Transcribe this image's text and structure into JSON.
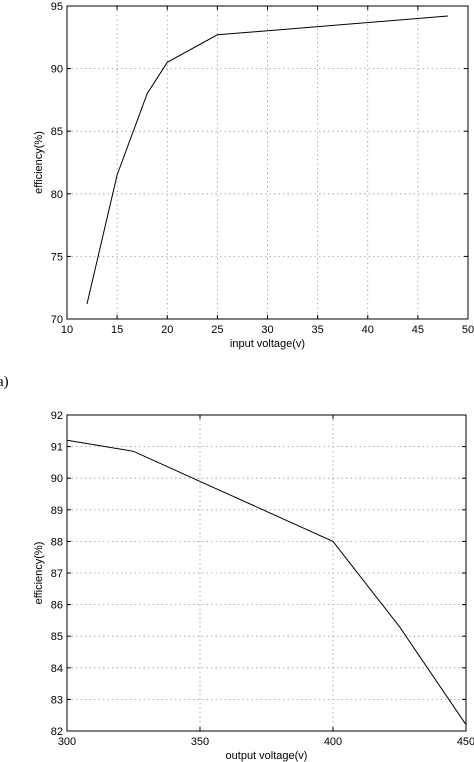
{
  "panel_labels": [
    "a)"
  ],
  "chart_data": [
    {
      "type": "line",
      "title": "",
      "xlabel": "input voltage(v)",
      "ylabel": "efficiency(%)",
      "xlim": [
        10,
        50
      ],
      "ylim": [
        70,
        95
      ],
      "xticks": [
        10,
        15,
        20,
        25,
        30,
        35,
        40,
        45,
        50
      ],
      "yticks": [
        70,
        75,
        80,
        85,
        90,
        95
      ],
      "xtick_labels": [
        "10",
        "15",
        "20",
        "25",
        "30",
        "35",
        "40",
        "45",
        "50"
      ],
      "ytick_labels": [
        "70",
        "75",
        "80",
        "85",
        "90",
        "95"
      ],
      "grid": true,
      "series": [
        {
          "x": [
            12,
            15,
            18,
            20,
            25,
            48
          ],
          "y": [
            71.2,
            81.5,
            88,
            90.5,
            92.7,
            94.2
          ]
        }
      ]
    },
    {
      "type": "line",
      "title": "",
      "xlabel": "output voltage(v)",
      "ylabel": "efficiency(%)",
      "xlim": [
        300,
        450
      ],
      "ylim": [
        82,
        92
      ],
      "xticks": [
        300,
        350,
        400,
        450
      ],
      "yticks": [
        82,
        83,
        84,
        85,
        86,
        87,
        88,
        89,
        90,
        91,
        92
      ],
      "xtick_labels": [
        "300",
        "350",
        "400",
        "450"
      ],
      "ytick_labels": [
        "82",
        "83",
        "84",
        "85",
        "86",
        "87",
        "88",
        "89",
        "90",
        "91",
        "92"
      ],
      "grid": true,
      "series": [
        {
          "x": [
            300,
            325,
            350,
            375,
            400,
            425,
            450
          ],
          "y": [
            91.2,
            90.85,
            89.9,
            88.95,
            88.0,
            85.3,
            82.2
          ]
        }
      ]
    }
  ]
}
